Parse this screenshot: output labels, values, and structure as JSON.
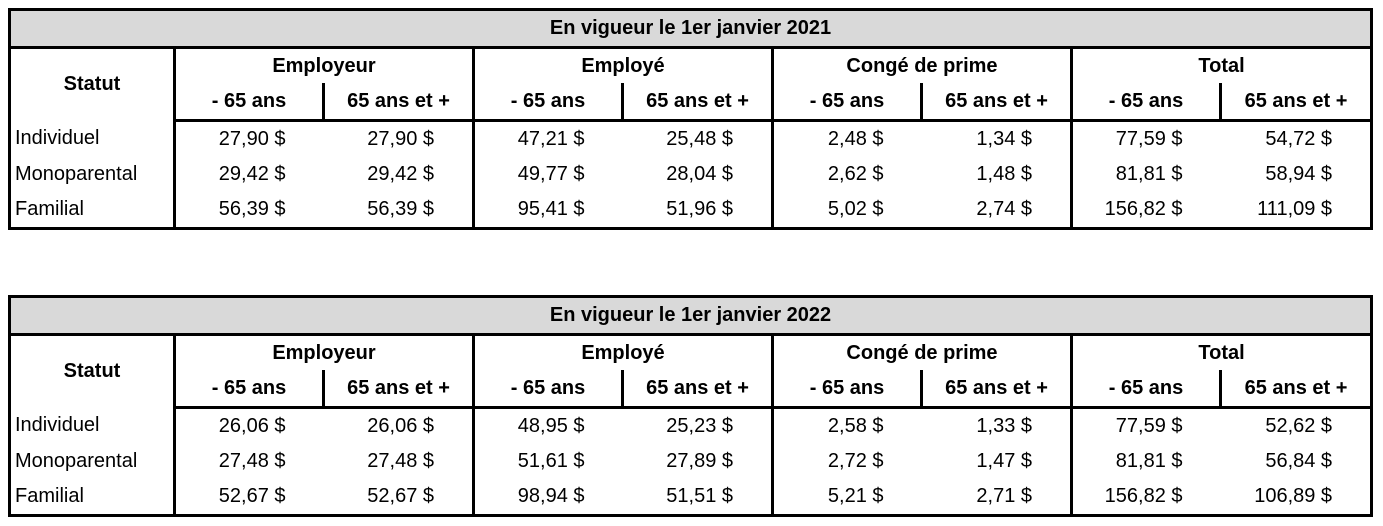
{
  "tables": [
    {
      "title": "En vigueur le 1er janvier 2021",
      "statut_label": "Statut",
      "groups": [
        "Employeur",
        "Employé",
        "Congé de prime",
        "Total"
      ],
      "subheaders": [
        "- 65 ans",
        "65 ans et +"
      ],
      "rows": [
        {
          "label": "Individuel",
          "values": [
            "27,90 $",
            "27,90 $",
            "47,21 $",
            "25,48 $",
            "2,48 $",
            "1,34 $",
            "77,59 $",
            "54,72 $"
          ]
        },
        {
          "label": "Monoparental",
          "values": [
            "29,42 $",
            "29,42 $",
            "49,77 $",
            "28,04 $",
            "2,62 $",
            "1,48 $",
            "81,81 $",
            "58,94 $"
          ]
        },
        {
          "label": "Familial",
          "values": [
            "56,39 $",
            "56,39 $",
            "95,41 $",
            "51,96 $",
            "5,02 $",
            "2,74 $",
            "156,82 $",
            "111,09 $"
          ]
        }
      ]
    },
    {
      "title": "En vigueur le 1er janvier 2022",
      "statut_label": "Statut",
      "groups": [
        "Employeur",
        "Employé",
        "Congé de prime",
        "Total"
      ],
      "subheaders": [
        "- 65 ans",
        "65 ans et +"
      ],
      "rows": [
        {
          "label": "Individuel",
          "values": [
            "26,06 $",
            "26,06 $",
            "48,95 $",
            "25,23 $",
            "2,58 $",
            "1,33 $",
            "77,59 $",
            "52,62 $"
          ]
        },
        {
          "label": "Monoparental",
          "values": [
            "27,48 $",
            "27,48 $",
            "51,61 $",
            "27,89 $",
            "2,72 $",
            "1,47 $",
            "81,81 $",
            "56,84 $"
          ]
        },
        {
          "label": "Familial",
          "values": [
            "52,67 $",
            "52,67 $",
            "98,94 $",
            "51,51 $",
            "5,21 $",
            "2,71 $",
            "156,82 $",
            "106,89 $"
          ]
        }
      ]
    }
  ]
}
